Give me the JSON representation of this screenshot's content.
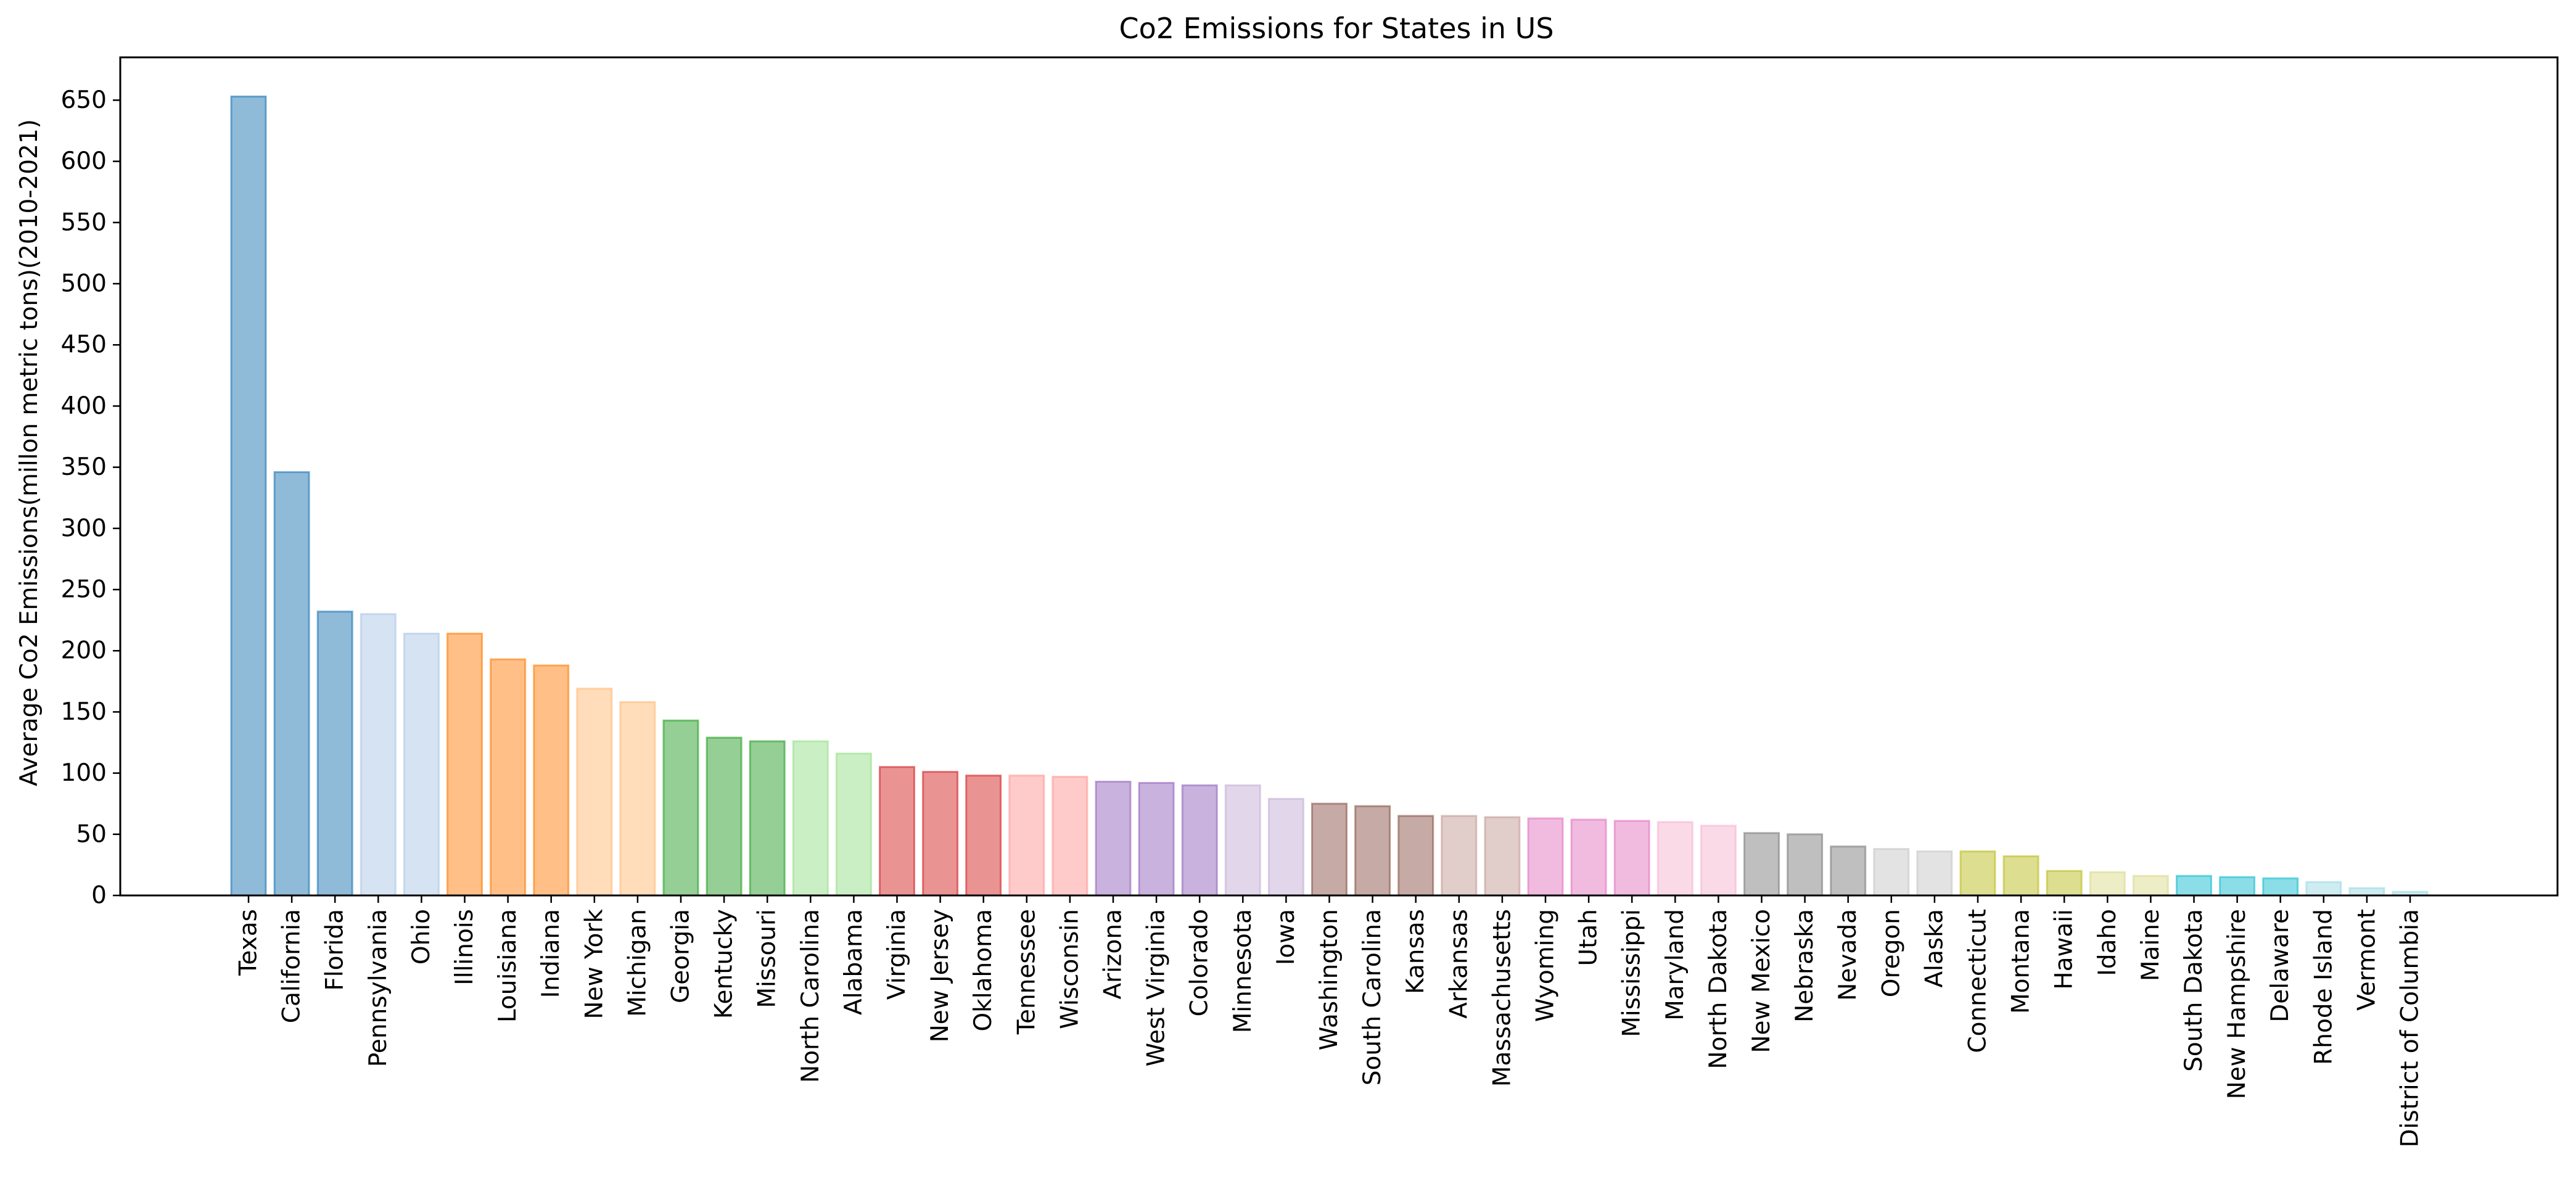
{
  "chart_data": {
    "type": "bar",
    "title": "Co2 Emissions for States in US",
    "xlabel": "",
    "ylabel": "Average Co2 Emissions(millon metric tons)(2010-2021)",
    "ylim": [
      0,
      685
    ],
    "yticks": [
      0,
      50,
      100,
      150,
      200,
      250,
      300,
      350,
      400,
      450,
      500,
      550,
      600,
      650
    ],
    "grid": false,
    "legend": "none",
    "categories": [
      "Texas",
      "California",
      "Florida",
      "Pennsylvania",
      "Ohio",
      "Illinois",
      "Louisiana",
      "Indiana",
      "New York",
      "Michigan",
      "Georgia",
      "Kentucky",
      "Missouri",
      "North Carolina",
      "Alabama",
      "Virginia",
      "New Jersey",
      "Oklahoma",
      "Tennessee",
      "Wisconsin",
      "Arizona",
      "West Virginia",
      "Colorado",
      "Minnesota",
      "Iowa",
      "Washington",
      "South Carolina",
      "Kansas",
      "Arkansas",
      "Massachusetts",
      "Wyoming",
      "Utah",
      "Mississippi",
      "Maryland",
      "North Dakota",
      "New Mexico",
      "Nebraska",
      "Nevada",
      "Oregon",
      "Alaska",
      "Connecticut",
      "Montana",
      "Hawaii",
      "Idaho",
      "Maine",
      "South Dakota",
      "New Hampshire",
      "Delaware",
      "Rhode Island",
      "Vermont",
      "District of Columbia"
    ],
    "values": [
      653,
      346,
      232,
      230,
      214,
      214,
      193,
      188,
      169,
      158,
      143,
      129,
      126,
      126,
      116,
      105,
      101,
      98,
      98,
      97,
      93,
      92,
      90,
      90,
      79,
      75,
      73,
      65,
      65,
      64,
      63,
      62,
      61,
      60,
      57,
      51,
      50,
      40,
      38,
      36,
      36,
      32,
      20,
      19,
      16,
      16,
      15,
      14,
      11,
      6,
      3
    ],
    "colors": [
      "#1f77b4",
      "#1f77b4",
      "#1f77b4",
      "#aec7e8",
      "#aec7e8",
      "#ff7f0e",
      "#ff7f0e",
      "#ff7f0e",
      "#ffbb78",
      "#ffbb78",
      "#2ca02c",
      "#2ca02c",
      "#2ca02c",
      "#98df8a",
      "#98df8a",
      "#d62728",
      "#d62728",
      "#d62728",
      "#ff9896",
      "#ff9896",
      "#9467bd",
      "#9467bd",
      "#9467bd",
      "#c5b0d5",
      "#c5b0d5",
      "#8c564b",
      "#8c564b",
      "#8c564b",
      "#c49c94",
      "#c49c94",
      "#e377c2",
      "#e377c2",
      "#e377c2",
      "#f7b6d2",
      "#f7b6d2",
      "#7f7f7f",
      "#7f7f7f",
      "#7f7f7f",
      "#c7c7c7",
      "#c7c7c7",
      "#bcbd22",
      "#bcbd22",
      "#bcbd22",
      "#dbdb8d",
      "#dbdb8d",
      "#17becf",
      "#17becf",
      "#17becf",
      "#9edae5",
      "#9edae5",
      "#9edae5"
    ],
    "bar_alpha": 0.5
  }
}
